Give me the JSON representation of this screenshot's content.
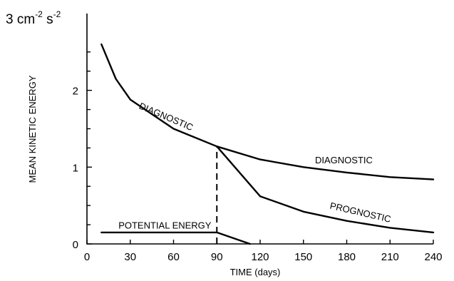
{
  "chart_data": {
    "type": "line",
    "title": "",
    "unit_label": "3 cm",
    "unit_exp1": "-2",
    "unit_mid": " s",
    "unit_exp2": "-2",
    "xlabel": "TIME (days)",
    "ylabel": "MEAN KINETIC ENERGY",
    "xlim": [
      0,
      240
    ],
    "ylim": [
      0,
      3
    ],
    "x_ticks": [
      0,
      30,
      60,
      90,
      120,
      150,
      180,
      210,
      240
    ],
    "y_ticks": [
      0,
      1,
      2
    ],
    "grid": false,
    "legend": "none",
    "line_color": "#000000",
    "series": [
      {
        "name": "DIAGNOSTIC",
        "x": [
          10,
          20,
          30,
          60,
          90,
          120,
          150,
          180,
          210,
          240
        ],
        "y": [
          2.6,
          2.15,
          1.88,
          1.5,
          1.27,
          1.1,
          1.0,
          0.93,
          0.87,
          0.84
        ]
      },
      {
        "name": "PROGNOSTIC",
        "x": [
          90,
          120,
          150,
          180,
          210,
          240
        ],
        "y": [
          1.27,
          0.62,
          0.42,
          0.3,
          0.21,
          0.15
        ]
      },
      {
        "name": "POTENTIAL ENERGY",
        "x": [
          10,
          90,
          113
        ],
        "y": [
          0.15,
          0.15,
          0.0
        ]
      }
    ],
    "annotations": [
      {
        "text": "DIAGNOSTIC",
        "x": 54,
        "y": 1.62,
        "rotate": 23
      },
      {
        "text": "DIAGNOSTIC",
        "x": 178,
        "y": 1.05,
        "rotate": 0
      },
      {
        "text": "PROGNOSTIC",
        "x": 189,
        "y": 0.37,
        "rotate": 13
      },
      {
        "text": "POTENTIAL ENERGY",
        "x": 54,
        "y": 0.2,
        "rotate": 0
      }
    ],
    "dashed_marker": {
      "x": 90,
      "y_from": 0.0,
      "y_to": 1.27
    }
  }
}
